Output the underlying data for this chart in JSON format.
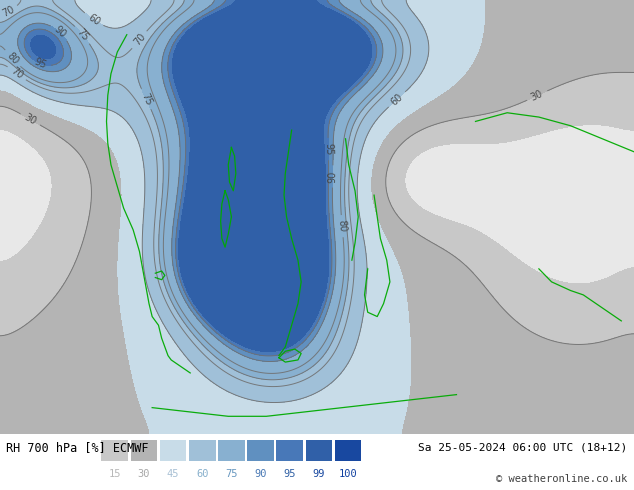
{
  "title_left": "RH 700 hPa [%] ECMWF",
  "title_right": "Sa 25-05-2024 06:00 UTC (18+12)",
  "copyright": "© weatheronline.co.uk",
  "colorbar_values": [
    15,
    30,
    45,
    60,
    75,
    90,
    95,
    99,
    100
  ],
  "colorbar_colors": [
    "#c8c8c8",
    "#b4b4b4",
    "#c8dce8",
    "#a0c0d8",
    "#88b0d0",
    "#6090c0",
    "#4878b8",
    "#3060a8",
    "#1848a0"
  ],
  "map_colors": [
    "#e8e8e8",
    "#c8c8c8",
    "#b4b4b4",
    "#c8dce8",
    "#a0c0d8",
    "#88b0d0",
    "#6090c0",
    "#4878b8",
    "#3060a8",
    "#1848a0"
  ],
  "levels": [
    0,
    15,
    30,
    45,
    60,
    75,
    90,
    95,
    99,
    100,
    101
  ],
  "bg_color": "#ffffff",
  "fig_width": 6.34,
  "fig_height": 4.9,
  "dpi": 100
}
